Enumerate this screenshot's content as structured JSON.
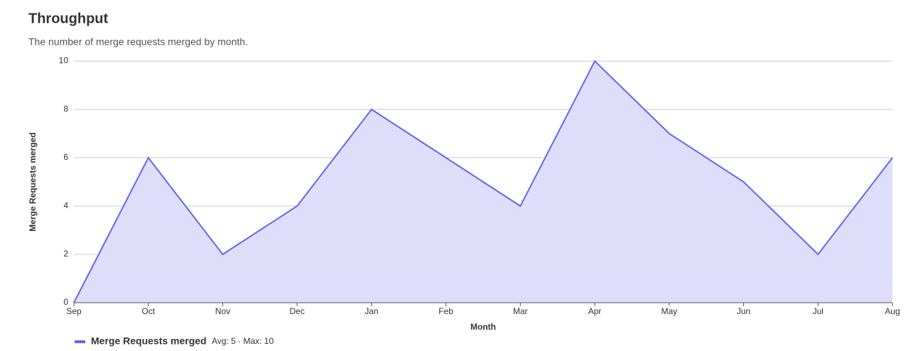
{
  "chart_data": {
    "type": "area",
    "title": "Throughput",
    "subtitle": "The number of merge requests merged by month.",
    "x_label": "Month",
    "y_label": "Merge Requests merged",
    "categories": [
      "Sep",
      "Oct",
      "Nov",
      "Dec",
      "Jan",
      "Feb",
      "Mar",
      "Apr",
      "May",
      "Jun",
      "Jul",
      "Aug"
    ],
    "series": [
      {
        "name": "Merge Requests merged",
        "color": "#6366f1",
        "fill": "#dedefb",
        "values": [
          0,
          6,
          2,
          4,
          8,
          6,
          4,
          10,
          7,
          5,
          2,
          6
        ]
      }
    ],
    "legend_stats": "Avg: 5 · Max: 10",
    "ylim": [
      0,
      10
    ],
    "yticks": [
      0,
      2,
      4,
      6,
      8,
      10
    ],
    "grid": true
  }
}
